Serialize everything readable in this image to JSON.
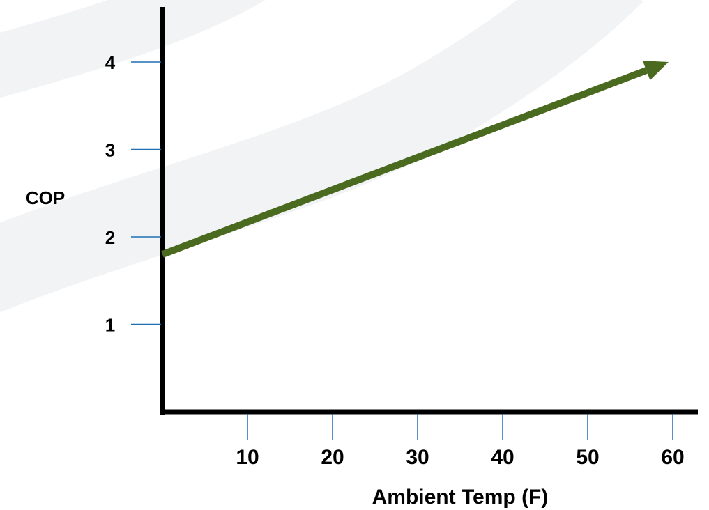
{
  "chart_data": {
    "type": "line",
    "xlabel": "Ambient Temp (F)",
    "ylabel": "COP",
    "x_ticks": [
      10,
      20,
      30,
      40,
      50,
      60
    ],
    "x_tick_labels": [
      "10",
      "20",
      "30",
      "40",
      "50",
      "60"
    ],
    "y_ticks": [
      1,
      2,
      3,
      4
    ],
    "y_tick_labels": [
      "1",
      "2",
      "3",
      "4"
    ],
    "xlim": [
      0,
      63
    ],
    "ylim": [
      0,
      4.6
    ],
    "grid": false,
    "legend": "none",
    "series": [
      {
        "x": [
          0,
          59.5
        ],
        "y": [
          1.8,
          4.0
        ],
        "color": "#4a6b1f",
        "marker": "arrow-end"
      }
    ]
  },
  "colors": {
    "axis": "#000000",
    "tick": "#1f6fb4",
    "background_swoosh": "#f0f2f4"
  }
}
